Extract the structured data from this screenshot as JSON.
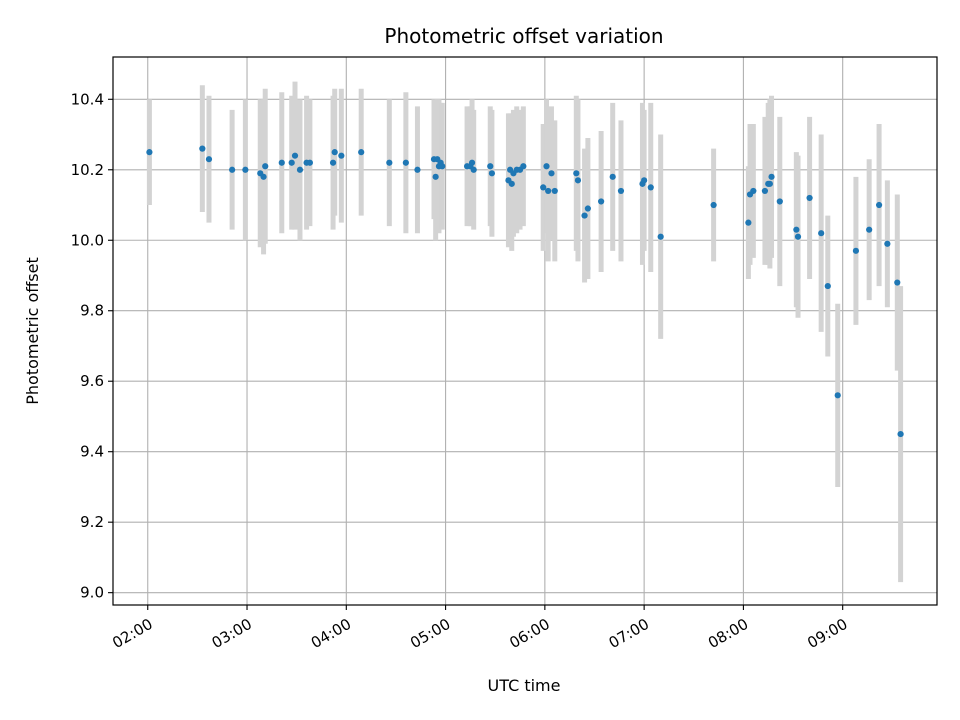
{
  "chart_data": {
    "type": "scatter",
    "title": "Photometric offset variation",
    "xlabel": "UTC time",
    "ylabel": "Photometric offset",
    "xlim": [
      "01:39",
      "09:57"
    ],
    "ylim": [
      8.965,
      10.52
    ],
    "grid": true,
    "x_ticks": [
      "02:00",
      "03:00",
      "04:00",
      "05:00",
      "06:00",
      "07:00",
      "08:00",
      "09:00"
    ],
    "y_ticks": [
      9.0,
      9.2,
      9.4,
      9.6,
      9.8,
      10.0,
      10.2,
      10.4
    ],
    "colors": {
      "point": "#1f77b4",
      "errorbar": "#d3d3d3",
      "grid": "#b0b0b0"
    },
    "series": [
      {
        "x": [
          "02:01",
          "02:33",
          "02:37",
          "02:51",
          "02:59",
          "03:08",
          "03:10",
          "03:11",
          "03:21",
          "03:27",
          "03:29",
          "03:32",
          "03:36",
          "03:38",
          "03:52",
          "03:53",
          "03:57",
          "04:09",
          "04:26",
          "04:36",
          "04:43",
          "04:53",
          "04:54",
          "04:55",
          "04:56",
          "04:57",
          "04:58",
          "05:13",
          "05:15",
          "05:16",
          "05:17",
          "05:27",
          "05:28",
          "05:38",
          "05:39",
          "05:40",
          "05:41",
          "05:43",
          "05:45",
          "05:47",
          "05:59",
          "06:01",
          "06:02",
          "06:04",
          "06:06",
          "06:19",
          "06:20",
          "06:24",
          "06:26",
          "06:34",
          "06:41",
          "06:46",
          "06:59",
          "07:00",
          "07:04",
          "07:10",
          "07:42",
          "08:03",
          "08:04",
          "08:06",
          "08:13",
          "08:15",
          "08:16",
          "08:17",
          "08:22",
          "08:32",
          "08:33",
          "08:40",
          "08:47",
          "08:51",
          "08:57",
          "09:08",
          "09:16",
          "09:22",
          "09:27",
          "09:33",
          "09:35"
        ],
        "y": [
          10.25,
          10.26,
          10.23,
          10.2,
          10.2,
          10.19,
          10.18,
          10.21,
          10.22,
          10.22,
          10.24,
          10.2,
          10.22,
          10.22,
          10.22,
          10.25,
          10.24,
          10.25,
          10.22,
          10.22,
          10.2,
          10.23,
          10.18,
          10.23,
          10.21,
          10.22,
          10.21,
          10.21,
          10.21,
          10.22,
          10.2,
          10.21,
          10.19,
          10.17,
          10.2,
          10.16,
          10.19,
          10.2,
          10.2,
          10.21,
          10.15,
          10.21,
          10.14,
          10.19,
          10.14,
          10.19,
          10.17,
          10.07,
          10.09,
          10.11,
          10.18,
          10.14,
          10.16,
          10.17,
          10.15,
          10.01,
          10.1,
          10.05,
          10.13,
          10.14,
          10.14,
          10.16,
          10.16,
          10.18,
          10.11,
          10.03,
          10.01,
          10.12,
          10.02,
          9.87,
          9.56,
          9.97,
          10.03,
          10.1,
          9.99,
          9.88,
          9.45
        ],
        "err": [
          0.15,
          0.18,
          0.18,
          0.17,
          0.2,
          0.21,
          0.22,
          0.22,
          0.2,
          0.19,
          0.21,
          0.2,
          0.19,
          0.18,
          0.19,
          0.18,
          0.19,
          0.18,
          0.18,
          0.2,
          0.18,
          0.17,
          0.18,
          0.17,
          0.19,
          0.17,
          0.18,
          0.17,
          0.17,
          0.18,
          0.17,
          0.17,
          0.18,
          0.19,
          0.16,
          0.19,
          0.18,
          0.18,
          0.17,
          0.17,
          0.18,
          0.19,
          0.2,
          0.19,
          0.2,
          0.22,
          0.23,
          0.19,
          0.2,
          0.2,
          0.21,
          0.2,
          0.23,
          0.2,
          0.24,
          0.29,
          0.16,
          0.16,
          0.2,
          0.19,
          0.21,
          0.23,
          0.24,
          0.23,
          0.24,
          0.22,
          0.23,
          0.23,
          0.28,
          0.2,
          0.26,
          0.21,
          0.2,
          0.23,
          0.18,
          0.25,
          0.42
        ]
      }
    ]
  }
}
